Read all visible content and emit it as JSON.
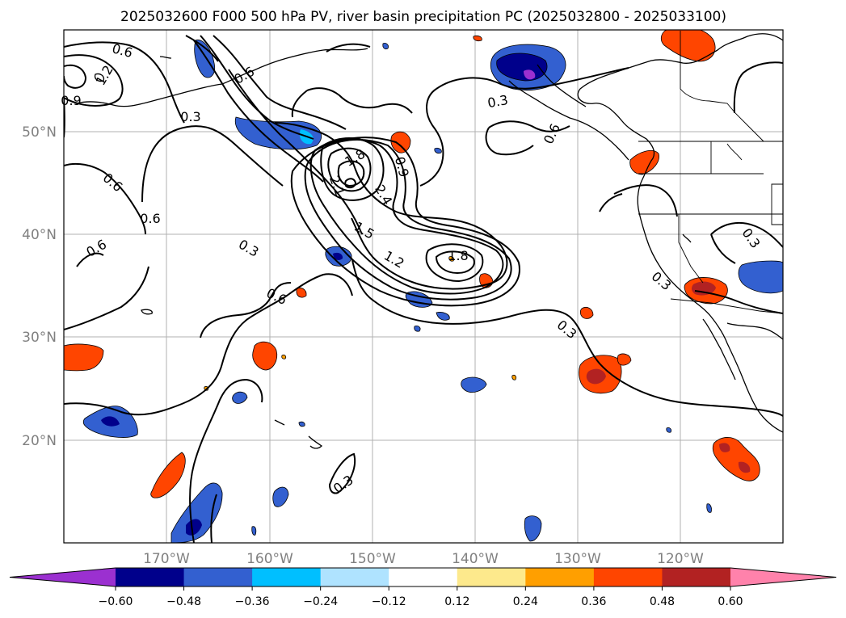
{
  "title": "2025032600 F000 500 hPa PV, river basin precipitation PC (2025032800 - 2025033100)",
  "lat_labels": [
    "50°N",
    "40°N",
    "30°N",
    "20°N"
  ],
  "lon_labels": [
    "170°W",
    "160°W",
    "150°W",
    "140°W",
    "130°W",
    "120°W"
  ],
  "colorbar": {
    "colors": [
      "#9b30d0",
      "#00008b",
      "#3360d0",
      "#00bfff",
      "#afe3ff",
      "#ffffff",
      "#fde98c",
      "#ff9f00",
      "#ff4500",
      "#b22222",
      "#ff82ab"
    ],
    "ticks": [
      "−0.60",
      "−0.48",
      "−0.36",
      "−0.24",
      "−0.12",
      "0.12",
      "0.24",
      "0.36",
      "0.48",
      "0.60"
    ]
  },
  "contour_labels": [
    "0.6",
    "1.2",
    "0.9",
    "0.6",
    "0.3",
    "0.6",
    "0.6",
    "0.6",
    "0.3",
    "0.6",
    "1.8",
    "0.9",
    "2.1",
    "2.4",
    "1.5",
    "1.2",
    "1.8",
    "0.3",
    "0.3",
    "0.3",
    "0.3",
    "0.6",
    "0.3"
  ]
}
